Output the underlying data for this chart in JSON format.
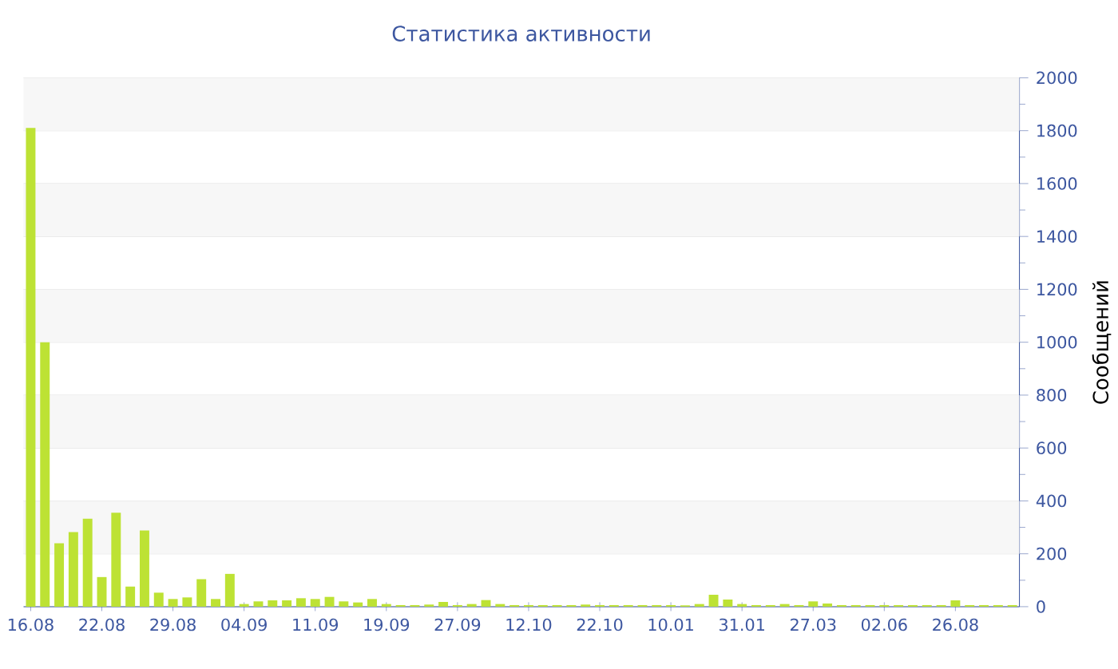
{
  "chart_data": {
    "type": "bar",
    "title": "Статистика активности",
    "ylabel": "Сообщений",
    "categories": [
      "16.08",
      null,
      null,
      null,
      null,
      "22.08",
      null,
      null,
      null,
      null,
      "29.08",
      null,
      null,
      null,
      null,
      "04.09",
      null,
      null,
      null,
      null,
      "11.09",
      null,
      null,
      null,
      null,
      "19.09",
      null,
      null,
      null,
      null,
      "27.09",
      null,
      null,
      null,
      null,
      "12.10",
      null,
      null,
      null,
      null,
      "22.10",
      null,
      null,
      null,
      null,
      "10.01",
      null,
      null,
      null,
      null,
      "31.01",
      null,
      null,
      null,
      null,
      "27.03",
      null,
      null,
      null,
      null,
      "02.06",
      null,
      null,
      null,
      null,
      "26.08",
      null,
      null,
      null,
      null
    ],
    "values": [
      1810,
      1000,
      240,
      282,
      333,
      112,
      355,
      76,
      288,
      53,
      29,
      35,
      104,
      29,
      124,
      10,
      20,
      24,
      24,
      32,
      29,
      37,
      20,
      16,
      29,
      10,
      6,
      6,
      8,
      18,
      6,
      10,
      25,
      10,
      6,
      6,
      6,
      6,
      6,
      8,
      6,
      6,
      6,
      6,
      6,
      6,
      5,
      10,
      45,
      27,
      10,
      6,
      6,
      10,
      6,
      20,
      12,
      6,
      6,
      6,
      6,
      6,
      6,
      6,
      6,
      24,
      6,
      6,
      6,
      6
    ],
    "color": "#bde234",
    "ylim": [
      0,
      2000
    ],
    "yticks": [
      0,
      200,
      400,
      600,
      800,
      1000,
      1200,
      1400,
      1600,
      1800,
      2000
    ],
    "grid": "y"
  }
}
